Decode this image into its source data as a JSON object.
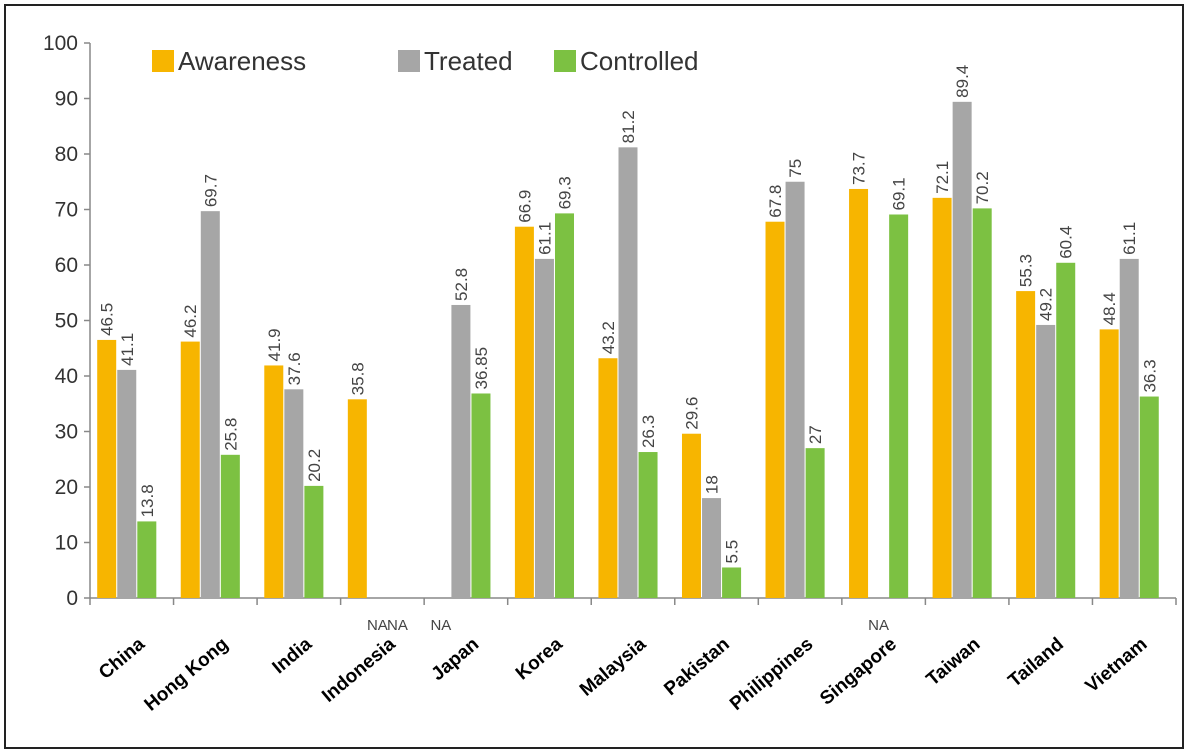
{
  "chart_data": {
    "type": "bar",
    "categories": [
      "China",
      "Hong Kong",
      "India",
      "Indonesia",
      "Japan",
      "Korea",
      "Malaysia",
      "Pakistan",
      "Philippines",
      "Singapore",
      "Taiwan",
      "Tailand",
      "Vietnam"
    ],
    "series": [
      {
        "name": "Awareness",
        "color": "#f7b500",
        "values": [
          46.5,
          46.2,
          41.9,
          35.8,
          null,
          66.9,
          43.2,
          29.6,
          67.8,
          73.7,
          72.1,
          55.3,
          48.4
        ]
      },
      {
        "name": "Treated",
        "color": "#a6a6a6",
        "values": [
          41.1,
          69.7,
          37.6,
          null,
          52.8,
          61.1,
          81.2,
          18,
          75,
          null,
          89.4,
          49.2,
          61.1
        ]
      },
      {
        "name": "Controlled",
        "color": "#7cc142",
        "values": [
          13.8,
          25.8,
          20.2,
          null,
          36.85,
          69.3,
          26.3,
          5.5,
          27,
          69.1,
          70.2,
          60.4,
          36.3
        ]
      }
    ],
    "value_labels": [
      [
        "46.5",
        "46.2",
        "41.9",
        "35.8",
        "",
        "66.9",
        "43.2",
        "29.6",
        "67.8",
        "73.7",
        "72.1",
        "55.3",
        "48.4"
      ],
      [
        "41.1",
        "69.7",
        "37.6",
        "",
        "52.8",
        "61.1",
        "81.2",
        "18",
        "75",
        "",
        "89.4",
        "49.2",
        "61.1"
      ],
      [
        "13.8",
        "25.8",
        "20.2",
        "",
        "36.85",
        "69.3",
        "26.3",
        "5.5",
        "27",
        "69.1",
        "70.2",
        "60.4",
        "36.3"
      ]
    ],
    "na_labels": [
      {
        "category": "Indonesia",
        "series": "Treated",
        "text": "NA"
      },
      {
        "category": "Indonesia",
        "series": "Controlled",
        "text": "NA"
      },
      {
        "category": "Japan",
        "series": "Awareness",
        "text": "NA"
      },
      {
        "category": "Singapore",
        "series": "Treated",
        "text": "NA"
      }
    ],
    "ylim": [
      0,
      100
    ],
    "yticks": [
      "0",
      "10",
      "20",
      "30",
      "40",
      "50",
      "60",
      "70",
      "80",
      "90",
      "100"
    ],
    "grid": false,
    "legend_position": "top-left",
    "title": "",
    "xlabel": "",
    "ylabel": ""
  }
}
